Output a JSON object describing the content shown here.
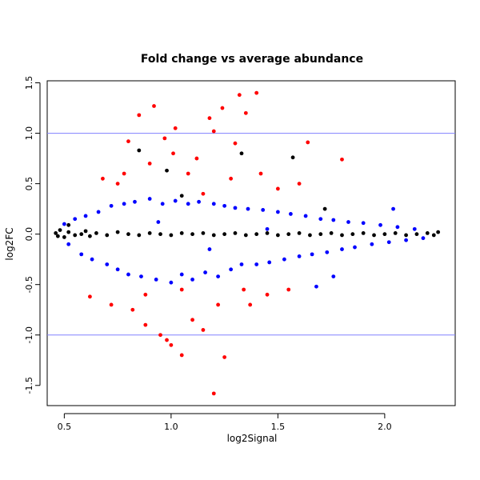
{
  "chart_data": {
    "type": "scatter",
    "title": "Fold change vs average abundance",
    "xlabel": "log2Signal",
    "ylabel": "log2FC",
    "xlim": [
      0.42,
      2.33
    ],
    "ylim": [
      -1.7,
      1.52
    ],
    "x_ticks": [
      0.5,
      1.0,
      1.5,
      2.0
    ],
    "x_tick_labels": [
      "0.5",
      "1.0",
      "1.5",
      "2.0"
    ],
    "y_ticks": [
      -1.5,
      -1.0,
      -0.5,
      0.0,
      0.5,
      1.0,
      1.5
    ],
    "y_tick_labels": [
      "-1.5",
      "-1.0",
      "-0.5",
      "0.0",
      "0.5",
      "1.0",
      "1.5"
    ],
    "reference_lines": [
      {
        "axis": "y",
        "value": 1.0,
        "color": "#8080ff"
      },
      {
        "axis": "y",
        "value": -1.0,
        "color": "#8080ff"
      }
    ],
    "grid": false,
    "legend": "none",
    "series": [
      {
        "color": "#000000",
        "points": [
          [
            0.46,
            0.01
          ],
          [
            0.47,
            -0.02
          ],
          [
            0.48,
            0.04
          ],
          [
            0.5,
            -0.03
          ],
          [
            0.52,
            0.02
          ],
          [
            0.55,
            -0.01
          ],
          [
            0.58,
            0.0
          ],
          [
            0.6,
            0.03
          ],
          [
            0.62,
            -0.02
          ],
          [
            0.65,
            0.01
          ],
          [
            0.7,
            -0.01
          ],
          [
            0.75,
            0.02
          ],
          [
            0.8,
            0.0
          ],
          [
            0.85,
            -0.01
          ],
          [
            0.9,
            0.01
          ],
          [
            0.95,
            0.0
          ],
          [
            1.0,
            -0.01
          ],
          [
            1.05,
            0.01
          ],
          [
            1.1,
            0.0
          ],
          [
            1.15,
            0.01
          ],
          [
            1.2,
            -0.01
          ],
          [
            1.25,
            0.0
          ],
          [
            1.3,
            0.01
          ],
          [
            1.35,
            -0.01
          ],
          [
            1.4,
            0.0
          ],
          [
            1.45,
            0.01
          ],
          [
            1.5,
            -0.01
          ],
          [
            1.55,
            0.0
          ],
          [
            1.6,
            0.01
          ],
          [
            1.65,
            -0.01
          ],
          [
            1.7,
            0.0
          ],
          [
            1.75,
            0.01
          ],
          [
            1.8,
            -0.01
          ],
          [
            1.85,
            0.0
          ],
          [
            1.9,
            0.01
          ],
          [
            1.95,
            -0.01
          ],
          [
            2.0,
            0.0
          ],
          [
            2.05,
            0.01
          ],
          [
            2.1,
            -0.01
          ],
          [
            2.15,
            0.0
          ],
          [
            2.2,
            0.01
          ],
          [
            2.23,
            -0.01
          ],
          [
            2.25,
            0.02
          ],
          [
            0.85,
            0.83
          ],
          [
            1.57,
            0.76
          ],
          [
            1.33,
            0.8
          ],
          [
            0.98,
            0.63
          ],
          [
            1.05,
            0.38
          ],
          [
            0.52,
            0.09
          ],
          [
            1.72,
            0.25
          ]
        ]
      },
      {
        "color": "#0000ff",
        "points": [
          [
            0.5,
            0.1
          ],
          [
            0.52,
            -0.1
          ],
          [
            0.55,
            0.15
          ],
          [
            0.58,
            -0.2
          ],
          [
            0.6,
            0.18
          ],
          [
            0.63,
            -0.25
          ],
          [
            0.66,
            0.22
          ],
          [
            0.7,
            -0.3
          ],
          [
            0.72,
            0.28
          ],
          [
            0.75,
            -0.35
          ],
          [
            0.78,
            0.3
          ],
          [
            0.8,
            -0.4
          ],
          [
            0.83,
            0.32
          ],
          [
            0.86,
            -0.42
          ],
          [
            0.9,
            0.35
          ],
          [
            0.93,
            -0.45
          ],
          [
            0.96,
            0.3
          ],
          [
            1.0,
            -0.48
          ],
          [
            1.02,
            0.33
          ],
          [
            1.05,
            -0.4
          ],
          [
            1.08,
            0.3
          ],
          [
            1.1,
            -0.45
          ],
          [
            1.13,
            0.32
          ],
          [
            1.16,
            -0.38
          ],
          [
            1.2,
            0.3
          ],
          [
            1.22,
            -0.42
          ],
          [
            1.25,
            0.28
          ],
          [
            1.28,
            -0.35
          ],
          [
            1.3,
            0.26
          ],
          [
            1.33,
            -0.3
          ],
          [
            1.36,
            0.25
          ],
          [
            1.4,
            -0.3
          ],
          [
            1.43,
            0.24
          ],
          [
            1.46,
            -0.28
          ],
          [
            1.5,
            0.22
          ],
          [
            1.53,
            -0.25
          ],
          [
            1.56,
            0.2
          ],
          [
            1.6,
            -0.22
          ],
          [
            1.63,
            0.18
          ],
          [
            1.66,
            -0.2
          ],
          [
            1.7,
            0.15
          ],
          [
            1.73,
            -0.18
          ],
          [
            1.76,
            0.14
          ],
          [
            1.8,
            -0.15
          ],
          [
            1.83,
            0.12
          ],
          [
            1.86,
            -0.13
          ],
          [
            1.9,
            0.11
          ],
          [
            1.94,
            -0.1
          ],
          [
            1.98,
            0.09
          ],
          [
            2.02,
            -0.08
          ],
          [
            2.06,
            0.07
          ],
          [
            2.1,
            -0.06
          ],
          [
            2.14,
            0.05
          ],
          [
            2.18,
            -0.04
          ],
          [
            1.68,
            -0.52
          ],
          [
            1.76,
            -0.42
          ],
          [
            2.04,
            0.25
          ],
          [
            0.94,
            0.12
          ],
          [
            1.18,
            -0.15
          ],
          [
            1.45,
            0.05
          ]
        ]
      },
      {
        "color": "#ff0000",
        "points": [
          [
            0.62,
            -0.62
          ],
          [
            0.68,
            0.55
          ],
          [
            0.72,
            -0.7
          ],
          [
            0.75,
            0.5
          ],
          [
            0.8,
            0.92
          ],
          [
            0.82,
            -0.75
          ],
          [
            0.85,
            1.18
          ],
          [
            0.88,
            -0.9
          ],
          [
            0.9,
            0.7
          ],
          [
            0.92,
            1.27
          ],
          [
            0.95,
            -1.0
          ],
          [
            0.97,
            0.95
          ],
          [
            1.0,
            -1.1
          ],
          [
            1.01,
            0.8
          ],
          [
            1.02,
            1.05
          ],
          [
            1.05,
            -1.2
          ],
          [
            1.08,
            0.6
          ],
          [
            1.1,
            -0.85
          ],
          [
            1.12,
            0.75
          ],
          [
            1.15,
            -0.95
          ],
          [
            1.18,
            1.15
          ],
          [
            1.2,
            1.02
          ],
          [
            1.22,
            -0.7
          ],
          [
            1.24,
            1.25
          ],
          [
            1.25,
            -1.22
          ],
          [
            1.28,
            0.55
          ],
          [
            1.3,
            0.9
          ],
          [
            1.32,
            1.38
          ],
          [
            1.35,
            1.2
          ],
          [
            1.37,
            -0.7
          ],
          [
            1.4,
            1.4
          ],
          [
            1.42,
            0.6
          ],
          [
            1.45,
            -0.6
          ],
          [
            1.5,
            0.45
          ],
          [
            1.55,
            -0.55
          ],
          [
            1.6,
            0.5
          ],
          [
            1.64,
            0.91
          ],
          [
            1.8,
            0.74
          ],
          [
            1.2,
            -1.58
          ],
          [
            0.98,
            -1.05
          ],
          [
            1.05,
            -0.55
          ],
          [
            0.88,
            -0.6
          ],
          [
            0.78,
            0.6
          ],
          [
            1.15,
            0.4
          ],
          [
            1.34,
            -0.55
          ]
        ]
      }
    ]
  }
}
